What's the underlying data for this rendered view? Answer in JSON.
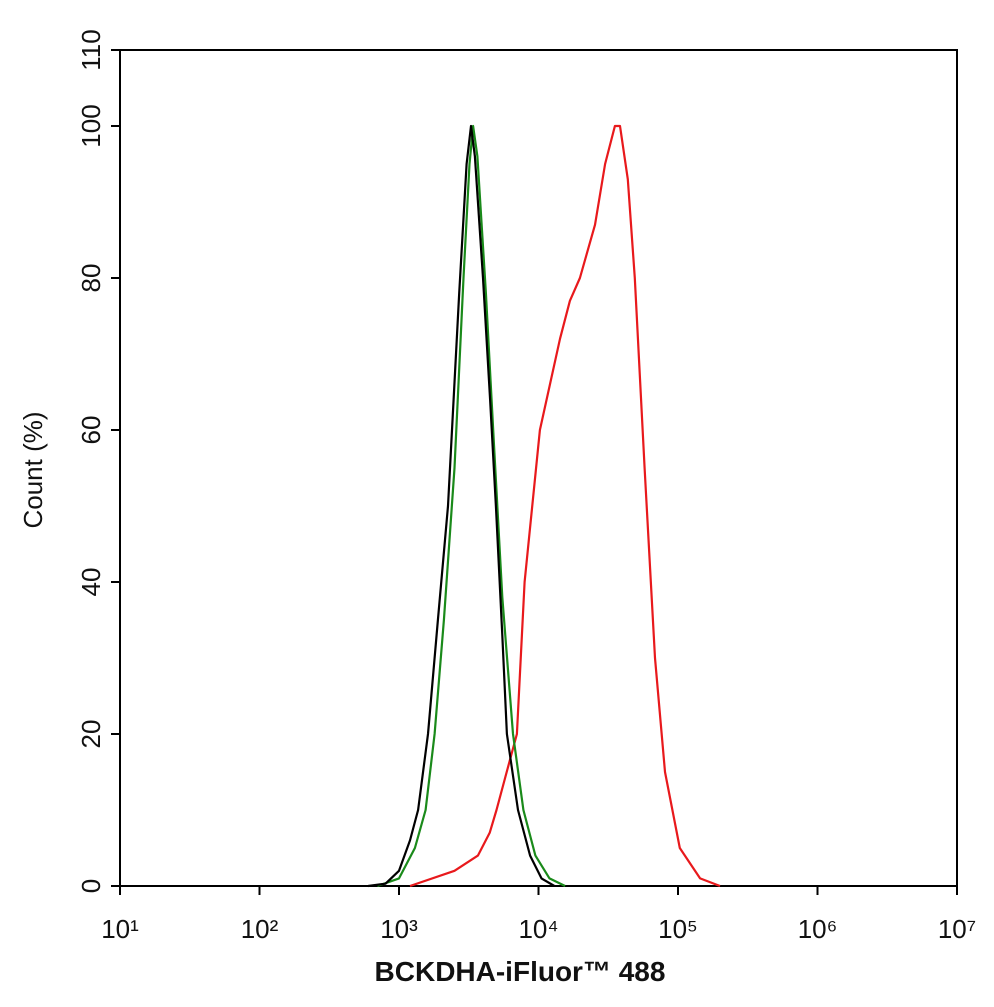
{
  "chart_data": {
    "type": "line",
    "xlabel": "BCKDHA-iFluor™ 488",
    "ylabel": "Count  (%)",
    "log_x": true,
    "xlim": [
      10,
      10000000
    ],
    "xticks": [
      {
        "value": 10,
        "label": "10¹"
      },
      {
        "value": 100,
        "label": "10²"
      },
      {
        "value": 1000,
        "label": "10³"
      },
      {
        "value": 10000,
        "label": "10⁴"
      },
      {
        "value": 100000,
        "label": "10⁵"
      },
      {
        "value": 1000000,
        "label": "10⁶"
      },
      {
        "value": 10000000,
        "label": "10⁷"
      }
    ],
    "ylim": [
      0,
      110
    ],
    "yticks": [
      0,
      20,
      40,
      60,
      80,
      100,
      110
    ],
    "series": [
      {
        "color": "#e8191c",
        "x": [
          1200,
          2500,
          3680,
          4470,
          5000,
          7000,
          7950,
          10230,
          14250,
          16800,
          19800,
          25400,
          30000,
          35300,
          38400,
          43700,
          49000,
          57600,
          68400,
          80700,
          103000,
          144000,
          200000
        ],
        "values": [
          0,
          2,
          4,
          7,
          10,
          20,
          40,
          60,
          72,
          77,
          80,
          87,
          95,
          100,
          100,
          93,
          80,
          55,
          30,
          15,
          5,
          1,
          0
        ]
      },
      {
        "color": "#1a8a1a",
        "x": [
          700,
          1000,
          1300,
          1550,
          1800,
          2100,
          2500,
          2900,
          3200,
          3400,
          3650,
          4200,
          4800,
          5500,
          6560,
          7800,
          9500,
          12000,
          15500
        ],
        "values": [
          0,
          1,
          5,
          10,
          20,
          35,
          55,
          80,
          95,
          100,
          96,
          78,
          58,
          38,
          20,
          10,
          4,
          1,
          0
        ]
      },
      {
        "color": "#000000",
        "x": [
          600,
          800,
          1000,
          1200,
          1370,
          1615,
          1900,
          2245,
          2700,
          3050,
          3280,
          3500,
          4000,
          4500,
          4950,
          5500,
          5940,
          7130,
          8700,
          10500,
          13000
        ],
        "values": [
          0,
          0.3,
          2,
          6,
          10,
          20,
          35,
          50,
          78,
          95,
          100,
          96,
          80,
          64,
          50,
          33,
          20,
          10,
          4,
          1,
          0
        ]
      }
    ]
  }
}
